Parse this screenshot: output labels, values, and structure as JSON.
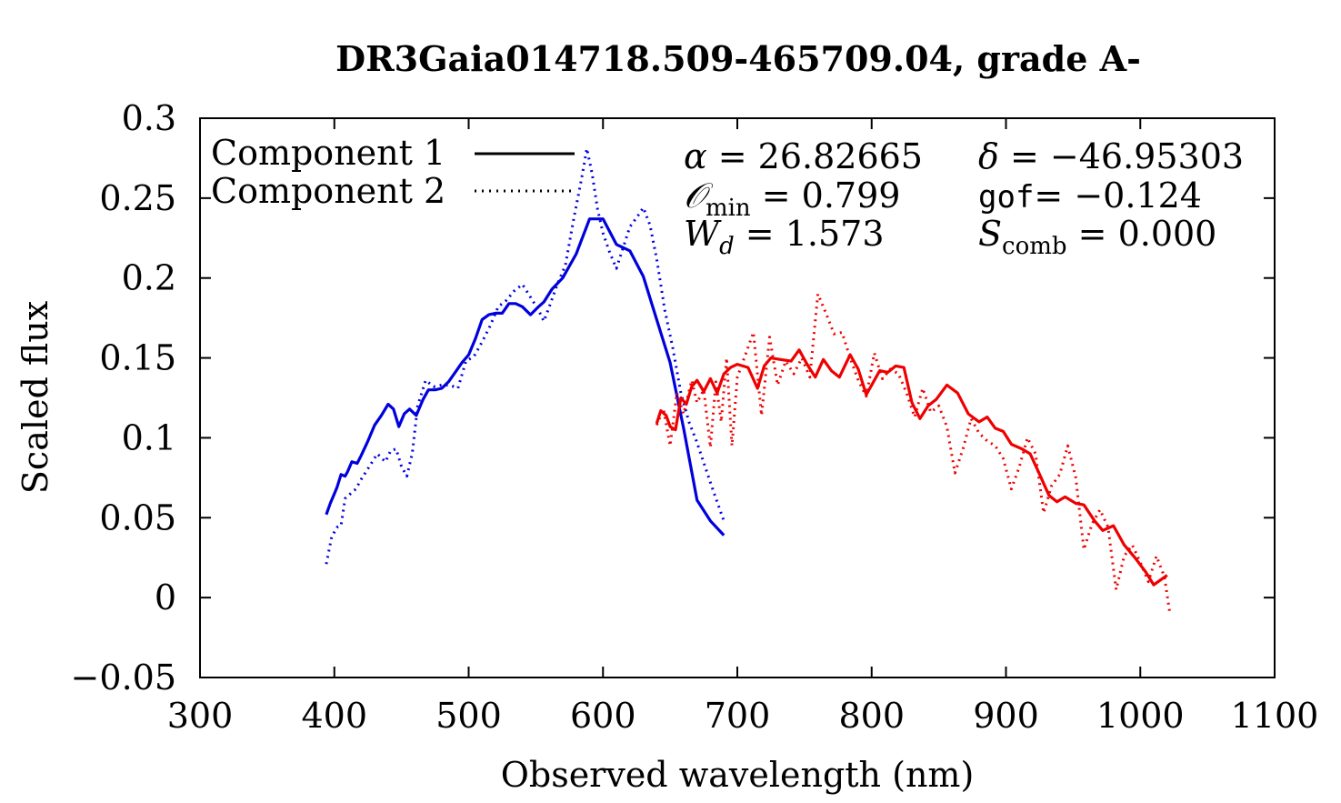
{
  "chart_data": {
    "type": "line",
    "title": "DR3Gaia014718.509-465709.04, grade A-",
    "xlabel": "Observed wavelength (nm)",
    "ylabel": "Scaled flux",
    "xlim": [
      300,
      1100
    ],
    "ylim": [
      -0.05,
      0.3
    ],
    "xticks": [
      300,
      400,
      500,
      600,
      700,
      800,
      900,
      1000,
      1100
    ],
    "xtick_labels": [
      "300",
      "400",
      "500",
      "600",
      "700",
      "800",
      "900",
      "1000",
      "1100"
    ],
    "yticks": [
      -0.05,
      0,
      0.05,
      0.1,
      0.15,
      0.2,
      0.25,
      0.3
    ],
    "ytick_labels": [
      "−0.05",
      "0",
      "0.05",
      "0.1",
      "0.15",
      "0.2",
      "0.25",
      "0.3"
    ],
    "legend": [
      {
        "label": "Component 1",
        "style": "solid"
      },
      {
        "label": "Component 2",
        "style": "dotted"
      }
    ],
    "annotations": {
      "alpha": {
        "symbol": "α",
        "value": "26.82665"
      },
      "delta": {
        "symbol": "δ",
        "value": "−46.95303"
      },
      "omin": {
        "symbol": "𝒪",
        "subscript": "min",
        "value": "0.799"
      },
      "gof": {
        "label": "gof",
        "value": "−0.124"
      },
      "wd": {
        "symbol": "W",
        "subscript": "d",
        "value": "1.573"
      },
      "scomb": {
        "symbol": "S",
        "subscript": "comb",
        "value": "0.000"
      }
    },
    "series": [
      {
        "name": "Component 1 (blue)",
        "color": "#0000dd",
        "style": "solid",
        "x": [
          394,
          397,
          400,
          402,
          405,
          408,
          410,
          413,
          417,
          420,
          425,
          430,
          435,
          440,
          444,
          448,
          452,
          456,
          461,
          466,
          470,
          475,
          480,
          485,
          490,
          495,
          500,
          505,
          510,
          515,
          520,
          525,
          530,
          535,
          540,
          546,
          552,
          556,
          562,
          570,
          580,
          590,
          600,
          610,
          620,
          630,
          640,
          650,
          660,
          670,
          680,
          690
        ],
        "y": [
          0.052,
          0.059,
          0.065,
          0.069,
          0.077,
          0.076,
          0.079,
          0.085,
          0.084,
          0.089,
          0.098,
          0.108,
          0.114,
          0.121,
          0.118,
          0.107,
          0.115,
          0.118,
          0.114,
          0.124,
          0.13,
          0.13,
          0.131,
          0.135,
          0.141,
          0.147,
          0.152,
          0.162,
          0.174,
          0.177,
          0.178,
          0.178,
          0.184,
          0.184,
          0.182,
          0.177,
          0.182,
          0.185,
          0.193,
          0.2,
          0.215,
          0.237,
          0.237,
          0.221,
          0.217,
          0.201,
          0.174,
          0.147,
          0.106,
          0.061,
          0.048,
          0.039
        ]
      },
      {
        "name": "Component 2 (blue)",
        "color": "#0000dd",
        "style": "dotted",
        "x": [
          394,
          398,
          402,
          405,
          408,
          412,
          416,
          420,
          426,
          432,
          438,
          442,
          446,
          450,
          454,
          458,
          462,
          468,
          474,
          480,
          486,
          492,
          498,
          504,
          510,
          516,
          522,
          528,
          534,
          540,
          546,
          552,
          556,
          560,
          566,
          572,
          578,
          584,
          588,
          592,
          596,
          600,
          605,
          610,
          615,
          620,
          626,
          630,
          635,
          640,
          646,
          652,
          658,
          664,
          670,
          676,
          682,
          690
        ],
        "y": [
          0.021,
          0.038,
          0.044,
          0.045,
          0.062,
          0.065,
          0.068,
          0.074,
          0.082,
          0.09,
          0.085,
          0.092,
          0.093,
          0.082,
          0.076,
          0.09,
          0.12,
          0.136,
          0.132,
          0.133,
          0.133,
          0.131,
          0.148,
          0.151,
          0.16,
          0.17,
          0.182,
          0.186,
          0.192,
          0.196,
          0.188,
          0.18,
          0.173,
          0.182,
          0.196,
          0.208,
          0.236,
          0.262,
          0.281,
          0.265,
          0.243,
          0.228,
          0.216,
          0.206,
          0.219,
          0.232,
          0.239,
          0.244,
          0.233,
          0.212,
          0.18,
          0.156,
          0.128,
          0.11,
          0.097,
          0.082,
          0.067,
          0.048
        ]
      },
      {
        "name": "Component 1 (red)",
        "color": "#ee0000",
        "style": "solid",
        "x": [
          640,
          643,
          647,
          650,
          654,
          658,
          662,
          666,
          670,
          675,
          680,
          685,
          690,
          695,
          700,
          708,
          715,
          720,
          725,
          732,
          740,
          746,
          752,
          758,
          764,
          770,
          776,
          784,
          790,
          796,
          800,
          806,
          812,
          818,
          824,
          830,
          836,
          842,
          848,
          856,
          864,
          872,
          880,
          886,
          892,
          898,
          904,
          912,
          918,
          924,
          932,
          938,
          944,
          952,
          958,
          966,
          972,
          980,
          988,
          996,
          1004,
          1010,
          1015,
          1020
        ],
        "y": [
          0.109,
          0.117,
          0.114,
          0.107,
          0.105,
          0.125,
          0.121,
          0.132,
          0.136,
          0.129,
          0.137,
          0.128,
          0.14,
          0.144,
          0.146,
          0.144,
          0.131,
          0.145,
          0.15,
          0.149,
          0.148,
          0.155,
          0.146,
          0.138,
          0.149,
          0.142,
          0.138,
          0.152,
          0.143,
          0.127,
          0.133,
          0.142,
          0.141,
          0.145,
          0.144,
          0.122,
          0.112,
          0.12,
          0.124,
          0.133,
          0.128,
          0.115,
          0.11,
          0.113,
          0.106,
          0.104,
          0.096,
          0.093,
          0.09,
          0.079,
          0.064,
          0.06,
          0.063,
          0.059,
          0.058,
          0.048,
          0.042,
          0.045,
          0.033,
          0.025,
          0.016,
          0.008,
          0.011,
          0.014
        ]
      },
      {
        "name": "Component 2 (red)",
        "color": "#ee0000",
        "style": "dotted",
        "x": [
          640,
          645,
          650,
          655,
          660,
          666,
          670,
          675,
          680,
          684,
          688,
          692,
          696,
          700,
          706,
          712,
          718,
          724,
          730,
          736,
          742,
          748,
          754,
          760,
          766,
          772,
          778,
          784,
          790,
          796,
          802,
          808,
          814,
          820,
          826,
          832,
          838,
          844,
          850,
          856,
          862,
          868,
          874,
          880,
          886,
          892,
          898,
          904,
          910,
          916,
          922,
          928,
          934,
          940,
          946,
          952,
          958,
          964,
          970,
          976,
          982,
          988,
          994,
          1000,
          1006,
          1012,
          1018,
          1022
        ],
        "y": [
          0.108,
          0.118,
          0.095,
          0.128,
          0.115,
          0.136,
          0.122,
          0.13,
          0.094,
          0.135,
          0.11,
          0.15,
          0.095,
          0.138,
          0.152,
          0.166,
          0.114,
          0.163,
          0.133,
          0.148,
          0.14,
          0.15,
          0.138,
          0.19,
          0.178,
          0.165,
          0.166,
          0.15,
          0.136,
          0.126,
          0.153,
          0.137,
          0.143,
          0.14,
          0.128,
          0.113,
          0.131,
          0.116,
          0.12,
          0.107,
          0.078,
          0.093,
          0.112,
          0.103,
          0.098,
          0.095,
          0.087,
          0.068,
          0.082,
          0.1,
          0.09,
          0.053,
          0.07,
          0.077,
          0.095,
          0.075,
          0.03,
          0.046,
          0.055,
          0.044,
          0.005,
          0.026,
          0.033,
          0.022,
          0.01,
          0.026,
          0.013,
          -0.01
        ]
      }
    ]
  }
}
